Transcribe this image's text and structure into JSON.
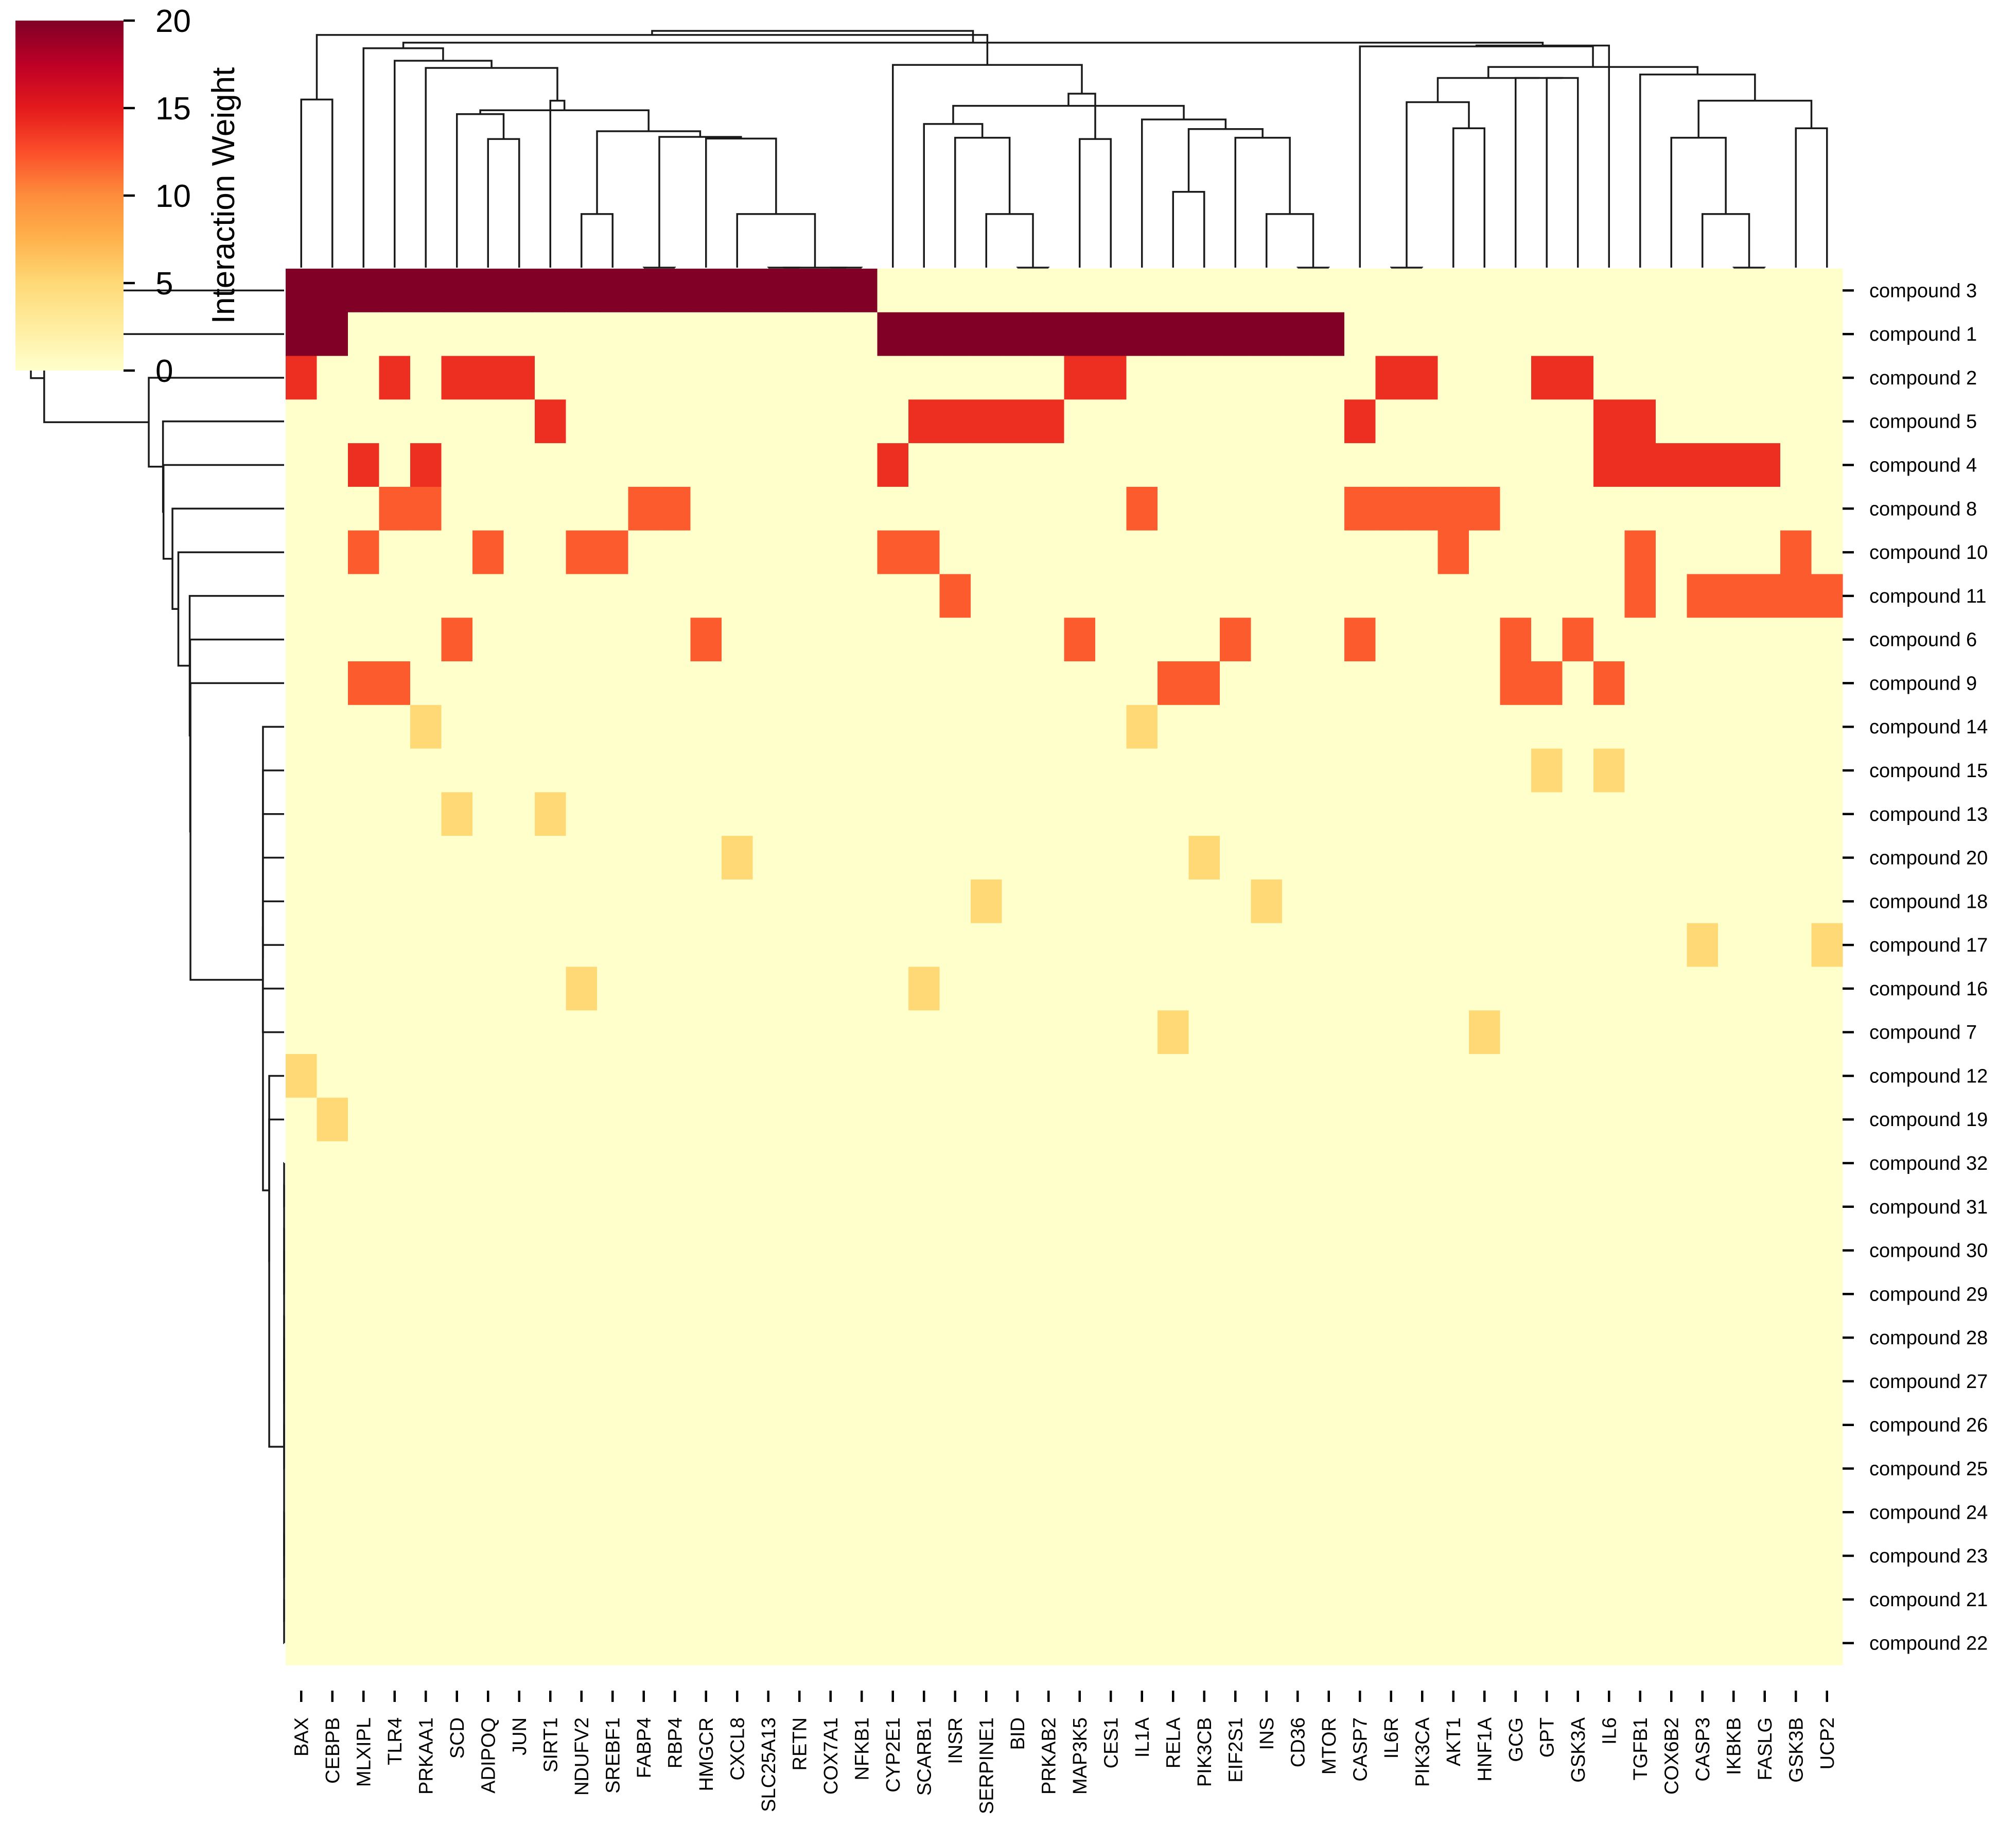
{
  "chart_data": {
    "type": "heatmap",
    "title": "",
    "colorbar": {
      "label": "Interaction Weight",
      "ticks": [
        0,
        5,
        10,
        15,
        20
      ],
      "range": [
        0,
        20
      ],
      "colormap": "YlOrRd",
      "colors": [
        "#ffffcc",
        "#ffeda0",
        "#fed976",
        "#feb24c",
        "#fd8d3c",
        "#fc4e2a",
        "#e31a1c",
        "#bd0026",
        "#800026"
      ]
    },
    "columns": [
      "BAX",
      "CEBPB",
      "MLXIPL",
      "TLR4",
      "PRKAA1",
      "SCD",
      "ADIPOQ",
      "JUN",
      "SIRT1",
      "NDUFV2",
      "SREBF1",
      "FABP4",
      "RBP4",
      "HMGCR",
      "CXCL8",
      "SLC25A13",
      "RETN",
      "COX7A1",
      "NFKB1",
      "CYP2E1",
      "SCARB1",
      "INSR",
      "SERPINE1",
      "BID",
      "PRKAB2",
      "MAP3K5",
      "CES1",
      "IL1A",
      "RELA",
      "PIK3CB",
      "EIF2S1",
      "INS",
      "CD36",
      "MTOR",
      "CASP7",
      "IL6R",
      "PIK3CA",
      "AKT1",
      "HNF1A",
      "GCG",
      "GPT",
      "GSK3A",
      "IL6",
      "TGFB1",
      "COX6B2",
      "CASP3",
      "IKBKB",
      "FASLG",
      "GSK3B",
      "UCP2"
    ],
    "rows": [
      "compound 3",
      "compound 1",
      "compound 2",
      "compound 5",
      "compound 4",
      "compound 8",
      "compound 10",
      "compound 11",
      "compound 6",
      "compound 9",
      "compound 14",
      "compound 15",
      "compound 13",
      "compound 20",
      "compound 18",
      "compound 17",
      "compound 16",
      "compound 7",
      "compound 12",
      "compound 19",
      "compound 32",
      "compound 31",
      "compound 30",
      "compound 29",
      "compound 28",
      "compound 27",
      "compound 26",
      "compound 25",
      "compound 24",
      "compound 23",
      "compound 21",
      "compound 22"
    ],
    "cells": [
      {
        "row": "compound 3",
        "columns": [
          "BAX",
          "CEBPB",
          "MLXIPL",
          "TLR4",
          "PRKAA1",
          "SCD",
          "ADIPOQ",
          "JUN",
          "SIRT1",
          "NDUFV2",
          "SREBF1",
          "FABP4",
          "RBP4",
          "HMGCR",
          "CXCL8",
          "SLC25A13",
          "RETN",
          "COX7A1",
          "NFKB1"
        ],
        "value": 20
      },
      {
        "row": "compound 1",
        "columns": [
          "BAX",
          "CEBPB",
          "CYP2E1",
          "SCARB1",
          "INSR",
          "SERPINE1",
          "BID",
          "PRKAB2",
          "MAP3K5",
          "CES1",
          "IL1A",
          "RELA",
          "PIK3CB",
          "EIF2S1",
          "INS",
          "CD36",
          "MTOR"
        ],
        "value": 20
      },
      {
        "row": "compound 2",
        "columns": [
          "BAX",
          "TLR4",
          "SCD",
          "ADIPOQ",
          "JUN",
          "MAP3K5",
          "CES1",
          "IL6R",
          "PIK3CA",
          "GPT",
          "GSK3A"
        ],
        "value": 14
      },
      {
        "row": "compound 5",
        "columns": [
          "SIRT1",
          "SCARB1",
          "INSR",
          "SERPINE1",
          "BID",
          "PRKAB2",
          "CASP7",
          "IL6",
          "TGFB1"
        ],
        "value": 14
      },
      {
        "row": "compound 4",
        "columns": [
          "MLXIPL",
          "PRKAA1",
          "CYP2E1",
          "IL6",
          "TGFB1",
          "COX6B2",
          "CASP3",
          "IKBKB",
          "FASLG"
        ],
        "value": 14
      },
      {
        "row": "compound 8",
        "columns": [
          "TLR4",
          "PRKAA1",
          "FABP4",
          "RBP4",
          "IL1A",
          "CASP7",
          "IL6R",
          "PIK3CA",
          "AKT1",
          "HNF1A"
        ],
        "value": 12
      },
      {
        "row": "compound 10",
        "columns": [
          "MLXIPL",
          "ADIPOQ",
          "NDUFV2",
          "SREBF1",
          "CYP2E1",
          "SCARB1",
          "AKT1",
          "TGFB1",
          "GSK3B"
        ],
        "value": 12
      },
      {
        "row": "compound 11",
        "columns": [
          "INSR",
          "TGFB1",
          "CASP3",
          "IKBKB",
          "FASLG",
          "GSK3B",
          "UCP2"
        ],
        "value": 12
      },
      {
        "row": "compound 6",
        "columns": [
          "SCD",
          "HMGCR",
          "MAP3K5",
          "EIF2S1",
          "CASP7",
          "GCG",
          "GSK3A"
        ],
        "value": 12
      },
      {
        "row": "compound 9",
        "columns": [
          "MLXIPL",
          "TLR4",
          "RELA",
          "PIK3CB",
          "GCG",
          "GPT",
          "IL6"
        ],
        "value": 12
      },
      {
        "row": "compound 14",
        "columns": [
          "PRKAA1",
          "IL1A"
        ],
        "value": 5
      },
      {
        "row": "compound 15",
        "columns": [
          "GPT",
          "IL6"
        ],
        "value": 5
      },
      {
        "row": "compound 13",
        "columns": [
          "SCD",
          "SIRT1"
        ],
        "value": 5
      },
      {
        "row": "compound 20",
        "columns": [
          "CXCL8",
          "PIK3CB"
        ],
        "value": 5
      },
      {
        "row": "compound 18",
        "columns": [
          "SERPINE1",
          "INS"
        ],
        "value": 5
      },
      {
        "row": "compound 17",
        "columns": [
          "CASP3",
          "UCP2"
        ],
        "value": 5
      },
      {
        "row": "compound 16",
        "columns": [
          "NDUFV2",
          "SCARB1"
        ],
        "value": 5
      },
      {
        "row": "compound 7",
        "columns": [
          "RELA",
          "HNF1A"
        ],
        "value": 5
      },
      {
        "row": "compound 12",
        "columns": [
          "BAX"
        ],
        "value": 5
      },
      {
        "row": "compound 19",
        "columns": [
          "CEBPB"
        ],
        "value": 5
      }
    ],
    "default_value": 0
  }
}
